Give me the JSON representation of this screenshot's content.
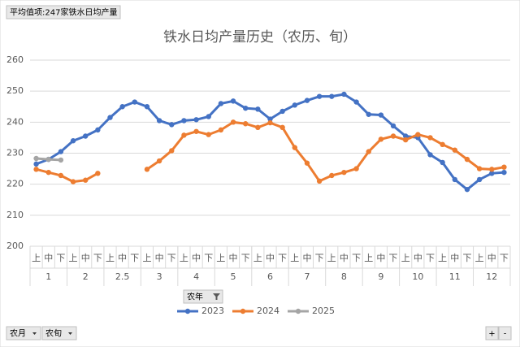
{
  "chart_data": {
    "type": "line",
    "title": "铁水日均产量历史（农历、旬）",
    "categories": [
      "上",
      "中",
      "下",
      "上",
      "中",
      "下",
      "上",
      "中",
      "下",
      "上",
      "中",
      "下",
      "上",
      "中",
      "下",
      "上",
      "中",
      "下",
      "上",
      "中",
      "下",
      "上",
      "中",
      "下",
      "上",
      "中",
      "下",
      "上",
      "中",
      "下",
      "上",
      "中",
      "下",
      "上",
      "中",
      "下",
      "上",
      "中",
      "下"
    ],
    "groups": [
      "1",
      "2",
      "2.5",
      "3",
      "4",
      "5",
      "6",
      "7",
      "8",
      "9",
      "10",
      "11",
      "12"
    ],
    "series": [
      {
        "name": "2023",
        "color": "#4472c4",
        "values": [
          226.5,
          228,
          230.5,
          234,
          235.5,
          237.5,
          241.5,
          245,
          246.5,
          245,
          240.5,
          239.2,
          240.5,
          240.8,
          241.8,
          246,
          246.8,
          244.5,
          244.2,
          241,
          243.5,
          245.5,
          247,
          248.3,
          248.3,
          249,
          246.5,
          242.5,
          242.3,
          238.8,
          235.5,
          235,
          229.5,
          227,
          221.5,
          218.3,
          221.5,
          223.5,
          223.8
        ]
      },
      {
        "name": "2024",
        "color": "#ed7d31",
        "values": [
          224.8,
          223.8,
          222.8,
          220.8,
          221.3,
          223.5,
          null,
          null,
          null,
          224.8,
          227.5,
          230.8,
          235.8,
          237,
          236,
          237.5,
          240,
          239.5,
          238.3,
          239.8,
          238.3,
          231.8,
          226.8,
          221,
          222.8,
          223.8,
          225,
          230.5,
          234.5,
          235.5,
          234.3,
          236,
          235,
          232.8,
          231,
          228,
          225,
          224.8,
          225.5
        ]
      },
      {
        "name": "2025",
        "color": "#a5a5a5",
        "values": [
          228.3,
          228,
          227.8,
          null,
          null,
          null,
          null,
          null,
          null,
          null,
          null,
          null,
          null,
          null,
          null,
          null,
          null,
          null,
          null,
          null,
          null,
          null,
          null,
          null,
          null,
          null,
          null,
          null,
          null,
          null,
          null,
          null,
          null,
          null,
          null,
          null,
          null,
          null,
          null
        ]
      }
    ],
    "ylim": [
      200,
      260
    ],
    "yticks": [
      200,
      210,
      220,
      230,
      240,
      250,
      260
    ],
    "grid": true,
    "legend": "bottom"
  },
  "ui": {
    "value_field": "平均值项:247家铁水日均产量",
    "column_field": "农年",
    "row_fields": [
      "农月",
      "农旬"
    ],
    "zoom": [
      "+",
      "-"
    ]
  }
}
